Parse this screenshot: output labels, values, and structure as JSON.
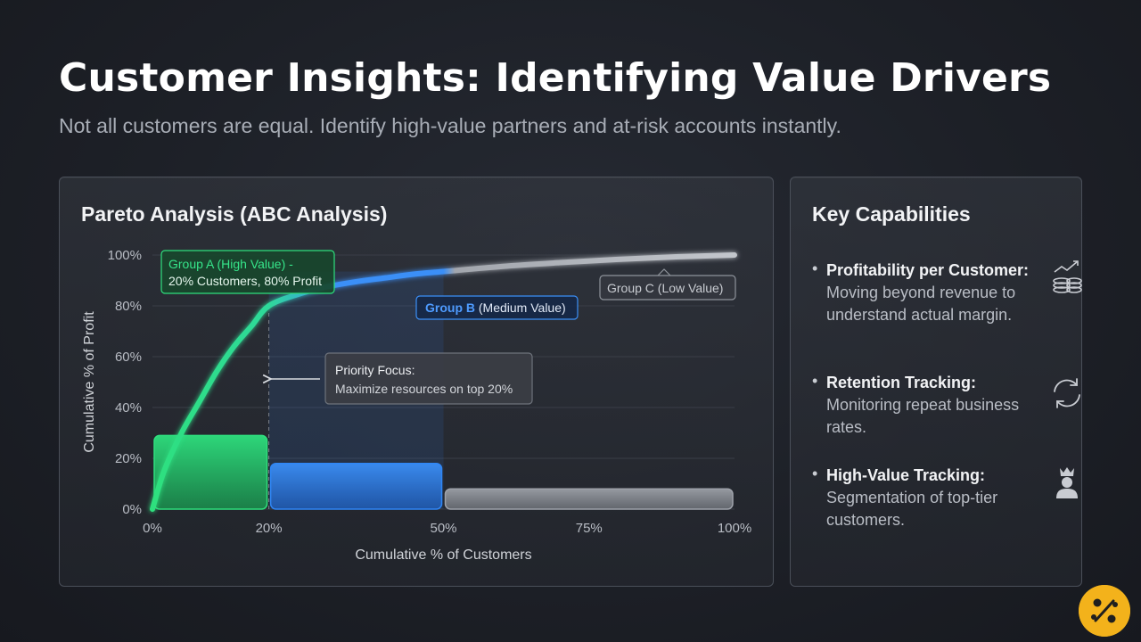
{
  "header": {
    "title": "Customer Insights: Identifying Value Drivers",
    "subtitle": "Not all customers are equal. Identify high-value partners and at-risk accounts instantly."
  },
  "chart_panel": {
    "title": "Pareto Analysis (ABC Analysis)"
  },
  "chart_data": {
    "type": "area",
    "title": "Pareto Analysis (ABC Analysis)",
    "xlabel": "Cumulative % of Customers",
    "ylabel": "Cumulative % of Profit",
    "xlim": [
      0,
      100
    ],
    "ylim": [
      0,
      100
    ],
    "x_ticks": [
      0,
      20,
      50,
      75,
      100
    ],
    "y_ticks": [
      0,
      20,
      40,
      60,
      80,
      100
    ],
    "x_tick_labels": [
      "0%",
      "20%",
      "50%",
      "75%",
      "100%"
    ],
    "y_tick_labels": [
      "0%",
      "20%",
      "40%",
      "60%",
      "80%",
      "100%"
    ],
    "grid": true,
    "series": [
      {
        "kind": "line",
        "x": [
          0,
          2,
          5,
          8,
          11,
          14,
          17,
          20,
          25,
          30,
          35,
          40,
          45,
          50,
          60,
          70,
          80,
          90,
          100
        ],
        "y": [
          0,
          15,
          30,
          42,
          54,
          64,
          72,
          80,
          84.5,
          87.5,
          89.5,
          91,
          92.5,
          93.5,
          95.5,
          97,
          98.3,
          99.3,
          100
        ]
      }
    ],
    "bars": [
      {
        "x0": 0,
        "x1": 20,
        "value": 29,
        "group": "A"
      },
      {
        "x0": 20,
        "x1": 50,
        "value": 18,
        "group": "B"
      },
      {
        "x0": 50,
        "x1": 100,
        "value": 8,
        "group": "C"
      }
    ],
    "annotations": {
      "group_a": {
        "title": "Group A (High Value) -",
        "detail": "20% Customers, 80% Profit"
      },
      "group_b": {
        "title": "Group B",
        "detail": "(Medium Value)"
      },
      "group_c": {
        "text": "Group C (Low Value)"
      },
      "priority": {
        "title": "Priority Focus:",
        "detail": "Maximize resources on top 20%"
      }
    },
    "colors": {
      "group_a": "#2ee07e",
      "group_b": "#2f86f5",
      "group_c": "#9ea2aa"
    }
  },
  "capabilities": {
    "title": "Key Capabilities",
    "items": [
      {
        "head": "Profitability per Customer:",
        "body": "Moving beyond revenue to understand actual margin.",
        "icon": "coins-trend-icon"
      },
      {
        "head": "Retention Tracking:",
        "body": "Monitoring repeat business rates.",
        "icon": "refresh-icon"
      },
      {
        "head": "High-Value Tracking:",
        "body": "Segmentation of top-tier customers.",
        "icon": "crown-user-icon"
      }
    ]
  },
  "bullet": "•",
  "logo": {
    "icon": "brand-logo-icon",
    "color": "#f3b21b"
  }
}
